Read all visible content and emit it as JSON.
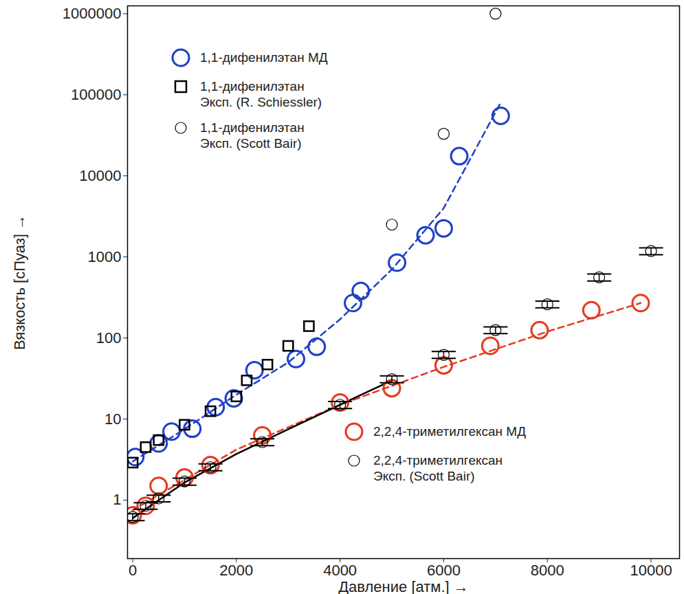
{
  "chart_data": {
    "type": "scatter",
    "x_label": "Давление [атм.]",
    "y_label": "Вязкость [сПуаз]",
    "xlim": [
      -100,
      10550
    ],
    "xticks": [
      0,
      2000,
      4000,
      6000,
      8000,
      10000
    ],
    "ylim": [
      0.19,
      1250000
    ],
    "yticks": [
      1,
      10,
      100,
      1000,
      10000,
      100000,
      1000000
    ],
    "log": "y",
    "grid": false,
    "series": [
      {
        "type": "line",
        "color": "#2040c8",
        "line_style": "dashed",
        "x": [
          0,
          1000,
          2000,
          3000,
          4000,
          5000,
          6000,
          7100
        ],
        "values": [
          3,
          7.5,
          20,
          50,
          170,
          700,
          4000,
          80000
        ]
      },
      {
        "type": "line",
        "color": "#e63a1f",
        "line_style": "dashed",
        "x": [
          0,
          2000,
          4000,
          6000,
          8000,
          9800
        ],
        "values": [
          0.75,
          4.2,
          15,
          44,
          120,
          270
        ]
      },
      {
        "type": "line",
        "color": "#000000",
        "line_style": "solid",
        "x": [
          0,
          1000,
          2000,
          3000,
          4000,
          5000
        ],
        "values": [
          0.6,
          1.65,
          3.7,
          7.5,
          15,
          30
        ]
      },
      {
        "name": "1,1-дифенилэтан МД",
        "type": "scatter",
        "marker": "circle",
        "color": "#2040c8",
        "legend": "upper left",
        "x": [
          50,
          500,
          750,
          1150,
          1600,
          1950,
          2350,
          3150,
          3550,
          4250,
          4400,
          5100,
          5650,
          6000,
          6300,
          7100
        ],
        "values": [
          3.4,
          5.0,
          7.0,
          7.6,
          14,
          18,
          40,
          55,
          78,
          270,
          380,
          850,
          1850,
          2250,
          17500,
          55000
        ]
      },
      {
        "name": "1,1-дифенилэтан\nЭксп. (R. Schiessler)",
        "type": "scatter",
        "marker": "square",
        "color": "#000000",
        "legend": "upper left",
        "x": [
          0,
          250,
          500,
          1000,
          1500,
          2000,
          2200,
          2600,
          3000,
          3400
        ],
        "values": [
          2.9,
          4.5,
          5.5,
          8.5,
          12.5,
          19,
          30,
          47,
          80,
          140
        ]
      },
      {
        "name": "1,1-дифенилэтан\nЭксп. (Scott Bair)",
        "type": "scatter",
        "marker": "ring",
        "color": "#000000",
        "legend": "upper left",
        "x": [
          5000,
          6000,
          7000
        ],
        "values": [
          2500,
          33000,
          1000000
        ]
      },
      {
        "name": "2,2,4-триметилгексан МД",
        "type": "scatter",
        "marker": "circle",
        "color": "#e63a1f",
        "legend": "lower right",
        "x": [
          0,
          250,
          500,
          1000,
          1500,
          2500,
          4000,
          5000,
          6000,
          6900,
          7850,
          8850,
          9800
        ],
        "values": [
          0.65,
          0.85,
          1.5,
          1.9,
          2.7,
          6.3,
          16,
          24,
          46,
          80,
          125,
          220,
          270
        ]
      },
      {
        "name": "2,2,4-триметилгексан\nЭксп. (Scott Bair)",
        "type": "scatter",
        "marker": "ring",
        "color": "#000000",
        "legend": "lower right",
        "x": [
          0,
          250,
          500,
          1000,
          1500,
          2500,
          4000,
          5000,
          6000,
          7000,
          8000,
          9000,
          10000
        ],
        "values": [
          0.62,
          0.85,
          1.05,
          1.7,
          2.55,
          5.2,
          15,
          31,
          62,
          125,
          260,
          560,
          1180
        ],
        "errors": [
          0.06,
          0.08,
          0.1,
          0.17,
          0.25,
          0.5,
          1.5,
          3,
          6,
          12,
          25,
          55,
          115
        ]
      }
    ]
  }
}
